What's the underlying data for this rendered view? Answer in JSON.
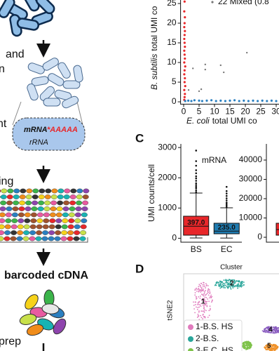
{
  "diagram": {
    "steps": [
      "and",
      "n",
      "nt",
      "ing",
      "barcoded cDNA",
      "prep"
    ],
    "transcript": {
      "mrna": "mRNA",
      "polya": "*AAAAA",
      "rrna": "rRNA"
    }
  },
  "panels": {
    "c": "C",
    "d": "D"
  },
  "chart_data": [
    {
      "type": "scatter",
      "y_label_species": "B. subtilis",
      "y_label_rest": "total UMI co",
      "x_label_species": "E. coli",
      "x_label_rest": "total UMI co",
      "xlim": [
        -1,
        31
      ],
      "ylim": [
        -0.6,
        26.5
      ],
      "xticks": [
        0,
        5,
        10,
        15,
        20,
        25,
        30
      ],
      "yticks": [
        0,
        5,
        10,
        15,
        20,
        25
      ],
      "series": [
        {
          "color": "#e8272a",
          "x": [
            0.2,
            0.3,
            0.4,
            0.2,
            0.5,
            0.3,
            0.4,
            0.2,
            0.3,
            0.5,
            0.2,
            0.4,
            0.3,
            0.2,
            0.4,
            0.3,
            0.2,
            0.3,
            0.4,
            0.2,
            0.3,
            0.4,
            0.2,
            0.3
          ],
          "values": [
            0.5,
            1.2,
            2,
            3,
            4,
            5,
            6,
            7,
            8,
            9,
            10,
            11,
            12,
            13,
            14,
            15,
            16,
            17,
            18,
            19,
            20,
            21.5,
            23,
            25.5
          ]
        },
        {
          "color": "#2a7fc0",
          "x": [
            0.5,
            1.5,
            2.5,
            3.5,
            5,
            6,
            7.5,
            9,
            10.5,
            12,
            13.5,
            15,
            16.5,
            18,
            19.5,
            21,
            22.5,
            24,
            25.5,
            27,
            28.5,
            30
          ],
          "values": [
            0.2,
            0.3,
            0.2,
            0.4,
            0.3,
            0.2,
            0.3,
            0.4,
            0.2,
            0.3,
            0.2,
            0.3,
            0.4,
            0.2,
            0.3,
            0.2,
            0.3,
            0.2,
            0.3,
            0.2,
            0.3,
            0.2
          ]
        },
        {
          "name": "22 Mixed (0.8",
          "color": "#777777",
          "x": [
            1.6,
            3,
            5,
            5.7,
            7,
            7,
            12,
            13,
            20.5
          ],
          "values": [
            3,
            8.5,
            2.7,
            3.2,
            9.5,
            8.2,
            9.3,
            7.5,
            12.5
          ]
        }
      ]
    },
    {
      "type": "box",
      "title": "mRNA",
      "y_label": "UMI counts/cell",
      "ylim": [
        -130,
        3120
      ],
      "yticks": [
        0,
        1000,
        2000,
        3000
      ],
      "categories": [
        "BS",
        "EC"
      ],
      "boxes": [
        {
          "color": "#e8272a",
          "median": 397,
          "median_label": "397.0",
          "q1": 102,
          "q3": 729,
          "whislo": 9,
          "whishi": 1495,
          "fliers": [
            1520,
            1580,
            1650,
            1700,
            1760,
            1820,
            1900,
            1980,
            2050,
            2150,
            2250,
            2400,
            2550,
            2900
          ]
        },
        {
          "color": "#1f7bb0",
          "median": 235,
          "median_label": "235.0",
          "q1": 148,
          "q3": 497,
          "whislo": 5,
          "whishi": 1007,
          "fliers": [
            1030,
            1080,
            1130,
            1180,
            1250,
            1320,
            1400,
            1480,
            1560,
            1700
          ]
        }
      ]
    },
    {
      "type": "box",
      "ylim": [
        -2545,
        48364
      ],
      "yticks": [
        0,
        10000,
        20000,
        30000,
        40000
      ],
      "boxes": [
        {
          "color": "#e8272a",
          "median": 4000,
          "q1": 1091,
          "q3": 7273
        }
      ]
    }
  ],
  "tsne": {
    "title": "Cluster",
    "y_label": "tSNE2",
    "legend": [
      "1-B.S. HS",
      "2-B.S.",
      "3-E.C. HS"
    ],
    "cluster_labels": [
      "1",
      "2",
      "4",
      "5"
    ]
  }
}
